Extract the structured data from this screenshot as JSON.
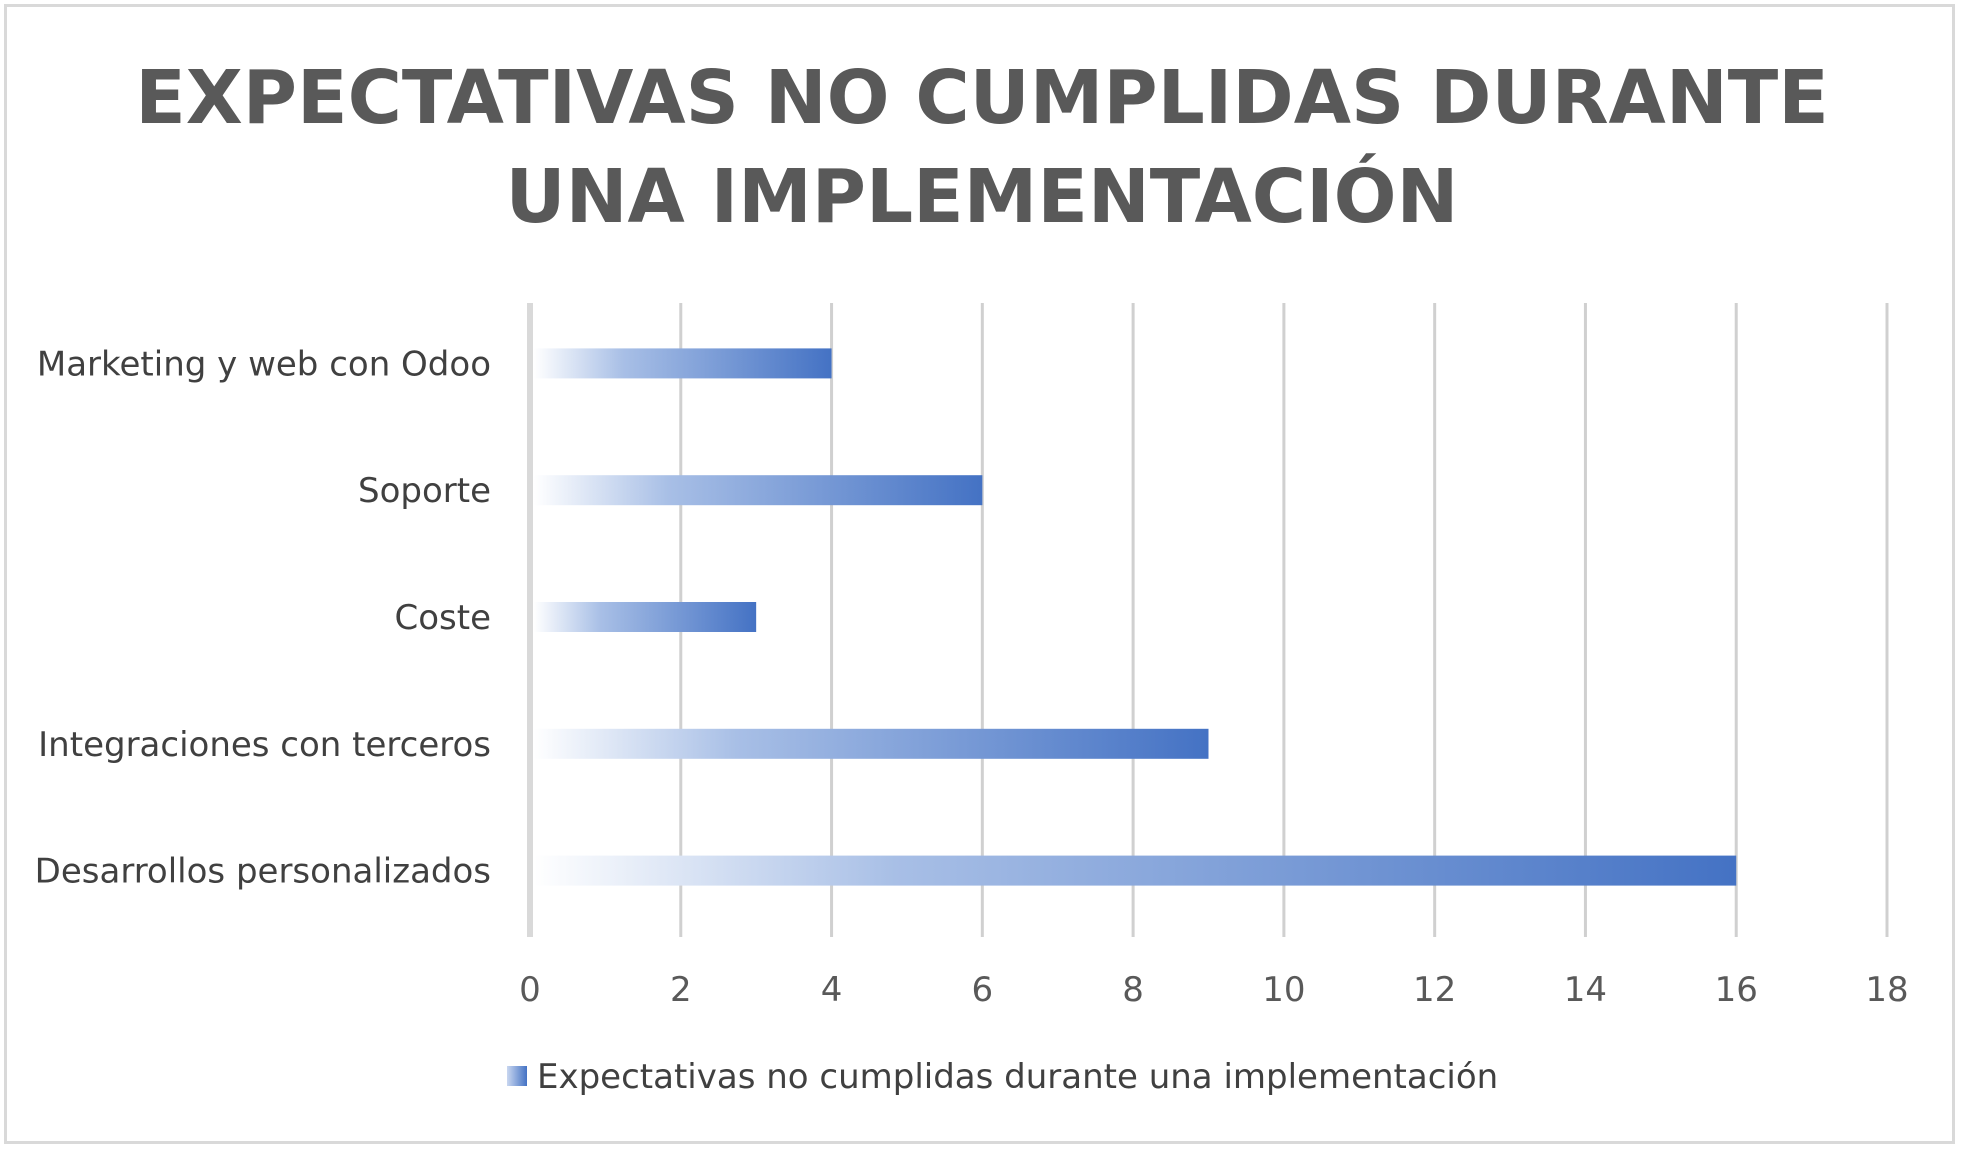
{
  "chart_data": {
    "type": "bar",
    "orientation": "horizontal",
    "title_lines": [
      "EXPECTATIVAS NO CUMPLIDAS DURANTE",
      "UNA IMPLEMENTACIÓN"
    ],
    "categories": [
      "Marketing y web con Odoo",
      "Soporte",
      "Coste",
      "Integraciones con terceros",
      "Desarrollos personalizados"
    ],
    "series": [
      {
        "name": "Expectativas no cumplidas durante una implementación",
        "values": [
          4,
          6,
          3,
          9,
          16
        ]
      }
    ],
    "xlim": [
      0,
      18
    ],
    "x_ticks": [
      0,
      2,
      4,
      6,
      8,
      10,
      12,
      14,
      16,
      18
    ],
    "grid": true,
    "legend_position": "bottom",
    "colors": {
      "bar_end": "#4472C4",
      "bar_start": "#ffffff",
      "title": "#595959",
      "text": "#404040",
      "grid": "#d0d0d0"
    }
  }
}
